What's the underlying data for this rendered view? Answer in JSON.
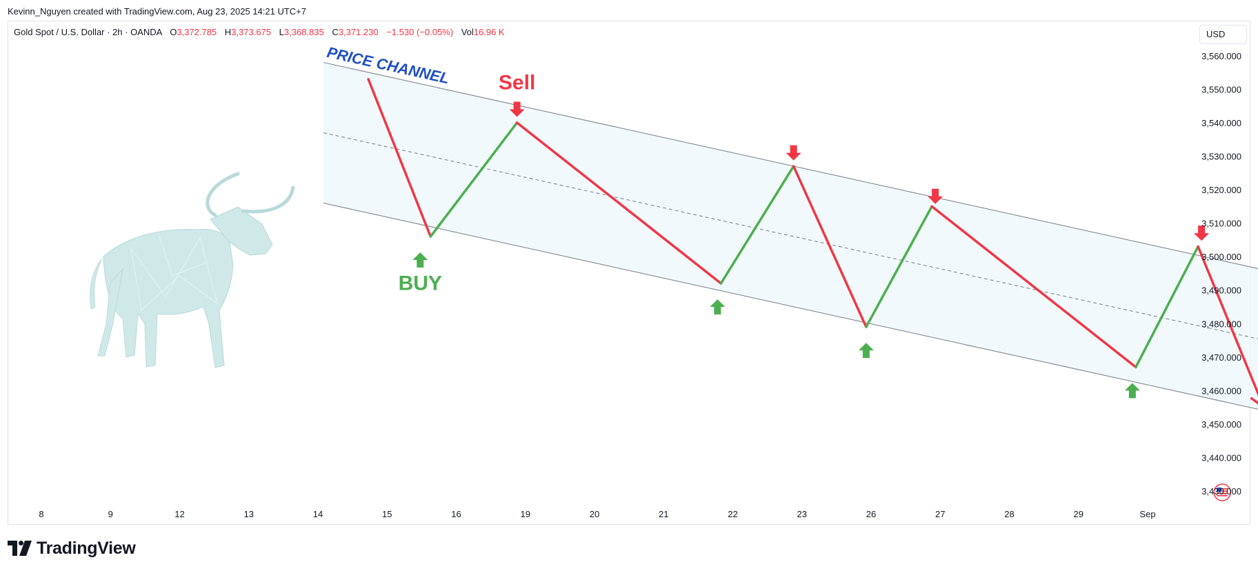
{
  "header": {
    "credit": "Kevinn_Nguyen created with TradingView.com, Aug 23, 2025 14:21 UTC+7"
  },
  "legend": {
    "symbol": "Gold Spot / U.S. Dollar · 2h · OANDA",
    "open_label": "O",
    "open": "3,372.785",
    "high_label": "H",
    "high": "3,373.675",
    "low_label": "L",
    "low": "3,368.835",
    "close_label": "C",
    "close": "3,371.230",
    "change": "−1.530 (−0.05%)",
    "vol_label": "Vol",
    "vol": "16.96 K"
  },
  "currency": "USD",
  "brand": {
    "name": "TradingView",
    "logo_icon": "tradingview-logo-icon"
  },
  "decoration": {
    "icon": "bull-icon"
  },
  "colors": {
    "up": "#4caf50",
    "down": "#f23645",
    "label_blue": "#1e4fc4",
    "channel_fill": "#eef7fb",
    "channel_line": "#787b86"
  },
  "chart_data": {
    "type": "line",
    "symbol": "XAUUSD",
    "x_ticks": [
      "8",
      "9",
      "12",
      "13",
      "14",
      "15",
      "16",
      "19",
      "20",
      "21",
      "22",
      "23",
      "26",
      "27",
      "28",
      "29",
      "Sep"
    ],
    "y_ticks": [
      3430,
      3440,
      3450,
      3460,
      3470,
      3480,
      3490,
      3500,
      3510,
      3520,
      3530,
      3540,
      3550,
      3560
    ],
    "y_tick_labels": [
      "3,430.000",
      "3,440.000",
      "3,450.000",
      "3,460.000",
      "3,470.000",
      "3,480.000",
      "3,490.000",
      "3,500.000",
      "3,510.000",
      "3,520.000",
      "3,530.000",
      "3,540.000",
      "3,550.000",
      "3,560.000"
    ],
    "ylim": [
      3425,
      3565
    ],
    "channel": {
      "label": "PRICE CHANNEL",
      "upper": [
        {
          "x": 13.85,
          "y": 3558
        },
        {
          "x": 29.0,
          "y": 3489
        }
      ],
      "middle": [
        {
          "x": 13.85,
          "y": 3537
        },
        {
          "x": 29.0,
          "y": 3468
        }
      ],
      "lower": [
        {
          "x": 13.85,
          "y": 3516
        },
        {
          "x": 29.0,
          "y": 3447
        }
      ]
    },
    "zigzag": [
      {
        "x": 14.5,
        "y": 3553
      },
      {
        "x": 15.4,
        "y": 3506
      },
      {
        "x": 16.65,
        "y": 3540
      },
      {
        "x": 19.6,
        "y": 3492
      },
      {
        "x": 20.65,
        "y": 3527
      },
      {
        "x": 21.7,
        "y": 3479
      },
      {
        "x": 22.65,
        "y": 3515
      },
      {
        "x": 25.6,
        "y": 3467
      },
      {
        "x": 26.5,
        "y": 3503
      },
      {
        "x": 27.45,
        "y": 3455
      }
    ],
    "signals": [
      {
        "type": "buy",
        "x": 15.25,
        "y": 3499
      },
      {
        "type": "sell",
        "x": 16.65,
        "y": 3544
      },
      {
        "type": "buy",
        "x": 19.55,
        "y": 3485
      },
      {
        "type": "sell",
        "x": 20.65,
        "y": 3531
      },
      {
        "type": "buy",
        "x": 21.7,
        "y": 3472
      },
      {
        "type": "sell",
        "x": 22.7,
        "y": 3518
      },
      {
        "type": "buy",
        "x": 25.55,
        "y": 3460
      },
      {
        "type": "sell",
        "x": 26.55,
        "y": 3507
      }
    ],
    "annotations": [
      {
        "text": "Sell",
        "color": "down",
        "x": 16.65,
        "y": 3550
      },
      {
        "text": "BUY",
        "color": "up",
        "x": 15.25,
        "y": 3490
      }
    ],
    "events": [
      {
        "x": 26.85,
        "icon": "us-flag-icon"
      },
      {
        "x": 28.8,
        "icon": "us-flag-icon"
      }
    ]
  }
}
